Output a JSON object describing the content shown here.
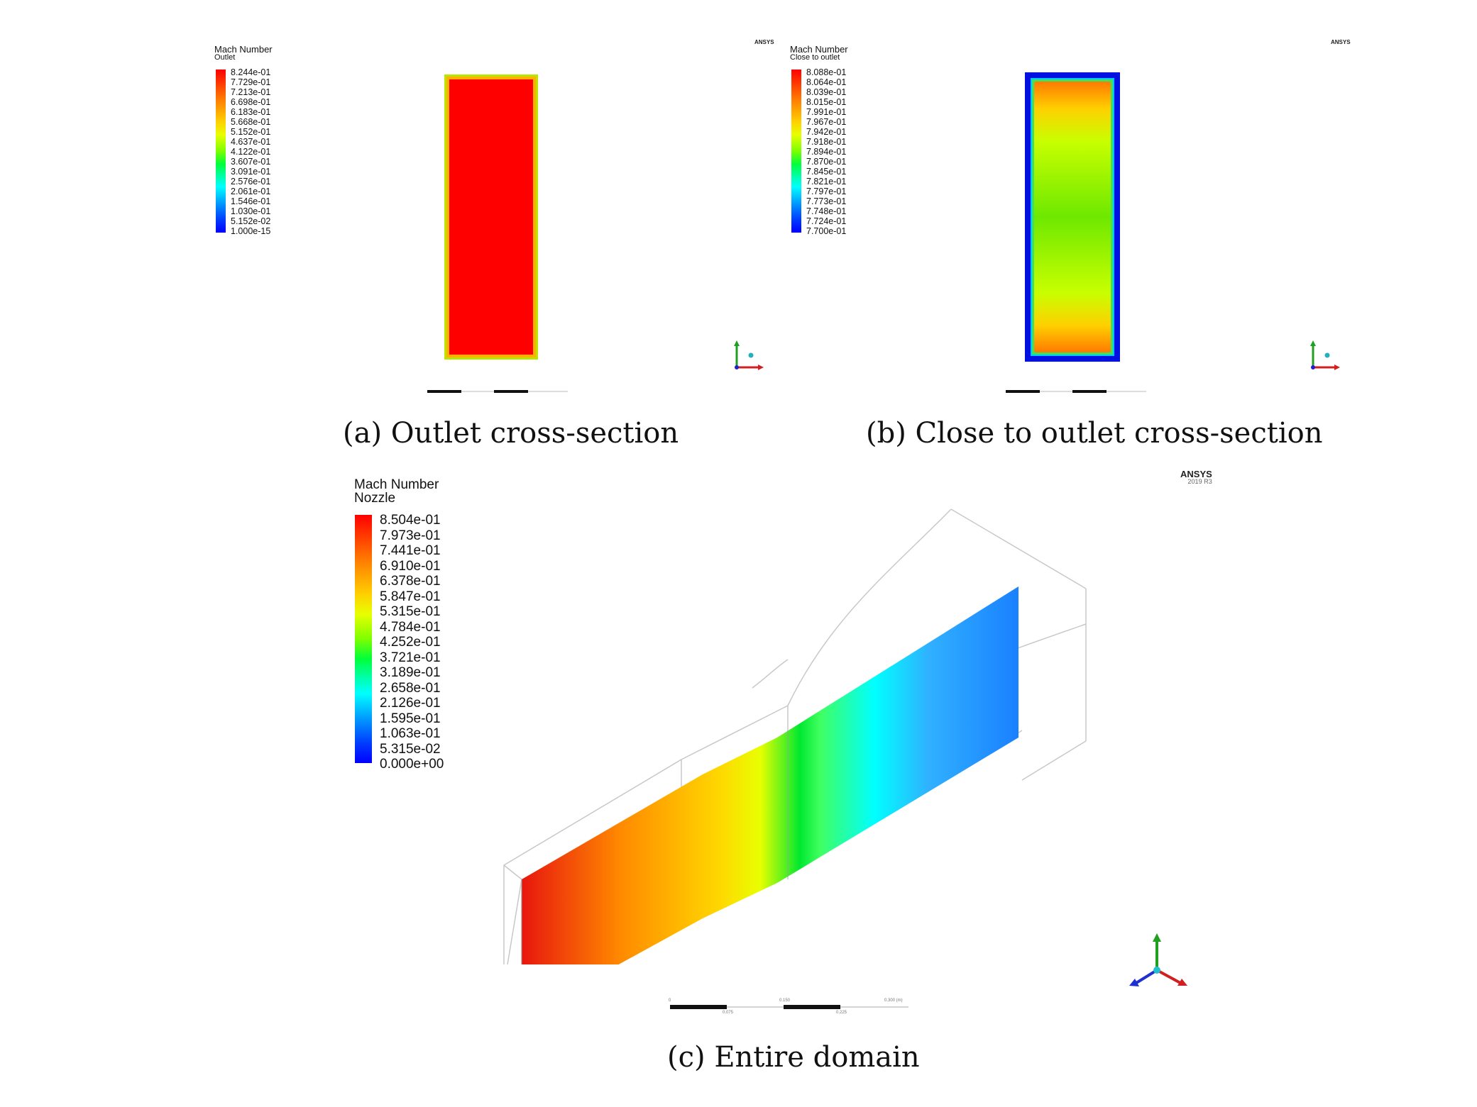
{
  "panel_a": {
    "legend_title_line1": "Mach Number",
    "legend_title_line2": "Outlet",
    "ticks": [
      "8.244e-01",
      "7.729e-01",
      "7.213e-01",
      "6.698e-01",
      "6.183e-01",
      "5.668e-01",
      "5.152e-01",
      "4.637e-01",
      "4.122e-01",
      "3.607e-01",
      "3.091e-01",
      "2.576e-01",
      "2.061e-01",
      "1.546e-01",
      "1.030e-01",
      "5.152e-02",
      "1.000e-15"
    ],
    "logo": "ANSYS",
    "caption": "(a) Outlet cross-section"
  },
  "panel_b": {
    "legend_title_line1": "Mach Number",
    "legend_title_line2": "Close to outlet",
    "ticks": [
      "8.088e-01",
      "8.064e-01",
      "8.039e-01",
      "8.015e-01",
      "7.991e-01",
      "7.967e-01",
      "7.942e-01",
      "7.918e-01",
      "7.894e-01",
      "7.870e-01",
      "7.845e-01",
      "7.821e-01",
      "7.797e-01",
      "7.773e-01",
      "7.748e-01",
      "7.724e-01",
      "7.700e-01"
    ],
    "logo": "ANSYS",
    "caption": "(b) Close to outlet cross-section"
  },
  "panel_c": {
    "legend_title_line1": "Mach Number",
    "legend_title_line2": "Nozzle",
    "ticks": [
      "8.504e-01",
      "7.973e-01",
      "7.441e-01",
      "6.910e-01",
      "6.378e-01",
      "5.847e-01",
      "5.315e-01",
      "4.784e-01",
      "4.252e-01",
      "3.721e-01",
      "3.189e-01",
      "2.658e-01",
      "2.126e-01",
      "1.595e-01",
      "1.063e-01",
      "5.315e-02",
      "0.000e+00"
    ],
    "logo": "ANSYS",
    "logo_version": "2019 R3",
    "scale_labels": [
      "0",
      "0.150",
      "0.300 (m)",
      "0.075",
      "0.225"
    ],
    "caption": "(c) Entire domain"
  },
  "colors": {
    "outlet_red": "#ff0000",
    "cross_blue": "#0000ff",
    "domain_gradient": [
      "#e8160e",
      "#ff8a00",
      "#ffe600",
      "#00e830",
      "#00ffff",
      "#0080ff"
    ]
  }
}
